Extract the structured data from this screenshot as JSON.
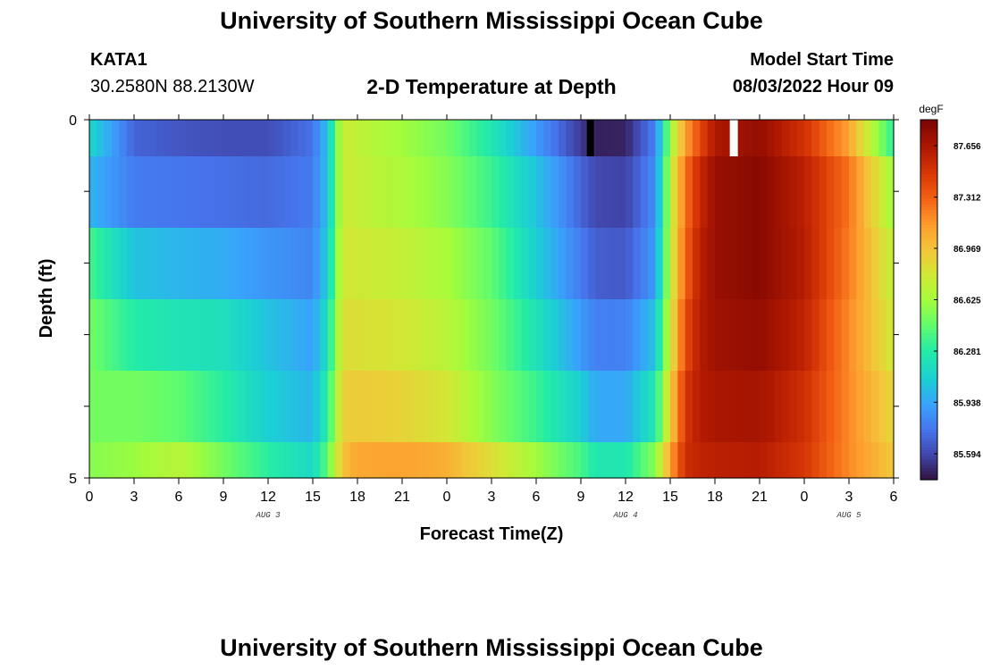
{
  "header": {
    "title": "University of Southern Mississippi Ocean Cube",
    "station_id": "KATA1",
    "station_coords": "30.2580N  88.2130W",
    "subtitle": "2-D Temperature at Depth",
    "model_label": "Model Start Time",
    "model_start": "08/03/2022 Hour 09"
  },
  "footer": {
    "title": "University of Southern Mississippi Ocean Cube"
  },
  "chart_data": {
    "type": "heatmap",
    "title": "2-D Temperature at Depth",
    "xlabel": "Forecast Time(Z)",
    "ylabel": "Depth (ft)",
    "x_ticks": [
      "0",
      "3",
      "6",
      "9",
      "12",
      "15",
      "18",
      "21",
      "0",
      "3",
      "6",
      "9",
      "12",
      "15",
      "18",
      "21",
      "0",
      "3",
      "6"
    ],
    "date_labels": [
      {
        "label": "AUG 3",
        "hour": 12
      },
      {
        "label": "AUG 4",
        "hour": 36
      },
      {
        "label": "AUG 5",
        "hour": 51
      }
    ],
    "x_range_hours": [
      0,
      54
    ],
    "y_ticks": [
      "0",
      "5"
    ],
    "ylim": [
      0,
      5
    ],
    "depth_layers_ft": [
      0.25,
      1.0,
      2.0,
      3.0,
      4.0,
      4.75
    ],
    "colorbar": {
      "unit": "degF",
      "min": 85.42,
      "max": 87.83,
      "ticks": [
        "85.594",
        "85.938",
        "86.281",
        "86.625",
        "86.969",
        "87.312",
        "87.656"
      ]
    },
    "anchor_hours": [
      0,
      3,
      6,
      9,
      12,
      15,
      16,
      17,
      18,
      21,
      24,
      27,
      30,
      33,
      34,
      36,
      38,
      39,
      40,
      41,
      42,
      45,
      48,
      51,
      54
    ],
    "temperatures": [
      [
        86.15,
        85.7,
        85.65,
        85.62,
        85.62,
        85.75,
        86.05,
        86.78,
        86.72,
        86.62,
        86.5,
        86.25,
        85.9,
        85.55,
        85.47,
        85.48,
        85.8,
        86.6,
        87.1,
        87.4,
        87.65,
        87.74,
        87.5,
        87.1,
        86.3
      ],
      [
        86.0,
        85.78,
        85.76,
        85.74,
        85.72,
        85.78,
        86.05,
        86.78,
        86.74,
        86.66,
        86.55,
        86.35,
        86.05,
        85.7,
        85.6,
        85.58,
        85.85,
        86.7,
        87.25,
        87.55,
        87.72,
        87.78,
        87.6,
        87.25,
        86.6
      ],
      [
        86.38,
        86.05,
        86.0,
        85.96,
        85.88,
        85.82,
        86.1,
        86.8,
        86.78,
        86.74,
        86.64,
        86.45,
        86.1,
        85.78,
        85.68,
        85.66,
        85.9,
        86.72,
        87.3,
        87.6,
        87.72,
        87.78,
        87.62,
        87.22,
        86.72
      ],
      [
        86.5,
        86.28,
        86.22,
        86.2,
        86.05,
        85.92,
        86.2,
        86.85,
        86.84,
        86.8,
        86.7,
        86.5,
        86.22,
        85.9,
        85.8,
        85.8,
        86.05,
        86.78,
        87.38,
        87.62,
        87.7,
        87.74,
        87.58,
        87.18,
        86.78
      ],
      [
        86.5,
        86.5,
        86.45,
        86.3,
        86.1,
        86.0,
        86.3,
        86.92,
        86.94,
        86.9,
        86.8,
        86.55,
        86.35,
        86.1,
        85.95,
        85.95,
        86.25,
        86.9,
        87.48,
        87.62,
        87.66,
        87.68,
        87.52,
        87.18,
        86.88
      ],
      [
        86.55,
        86.6,
        86.7,
        86.5,
        86.3,
        86.15,
        86.45,
        86.98,
        87.08,
        87.1,
        87.05,
        86.85,
        86.62,
        86.38,
        86.25,
        86.25,
        86.55,
        87.1,
        87.52,
        87.58,
        87.6,
        87.62,
        87.48,
        87.18,
        86.95
      ]
    ]
  }
}
